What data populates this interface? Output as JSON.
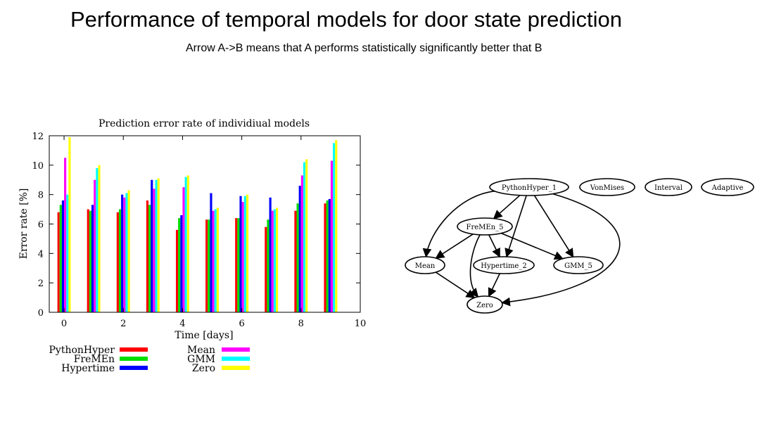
{
  "slide": {
    "title": "Performance of temporal models for door state prediction",
    "subtitle": "Arrow A->B means that A performs statistically significantly better that B"
  },
  "chart_data": {
    "type": "bar",
    "title": "Prediction error rate of individiual models",
    "xlabel": "Time [days]",
    "ylabel": "Error rate [%]",
    "ylim": [
      0,
      12
    ],
    "xlim": [
      -0.5,
      10
    ],
    "xticks": [
      "0",
      "2",
      "4",
      "6",
      "8",
      "10"
    ],
    "yticks": [
      "0",
      "2",
      "4",
      "6",
      "8",
      "10",
      "12"
    ],
    "grid": false,
    "legend_position": "bottom",
    "x": [
      0,
      1,
      2,
      3,
      4,
      5,
      6,
      7,
      8,
      9
    ],
    "series": [
      {
        "name": "PythonHyper",
        "color": "#ff0000",
        "values": [
          6.8,
          7.0,
          6.8,
          7.6,
          5.6,
          6.3,
          6.4,
          5.8,
          6.9,
          7.4
        ]
      },
      {
        "name": "FreMEn",
        "color": "#00dd00",
        "values": [
          7.3,
          6.9,
          7.0,
          7.3,
          6.4,
          6.3,
          6.4,
          6.3,
          7.4,
          7.6
        ]
      },
      {
        "name": "Hypertime",
        "color": "#0000ff",
        "values": [
          7.6,
          7.3,
          8.0,
          9.0,
          6.6,
          8.1,
          7.9,
          7.8,
          8.6,
          7.7
        ]
      },
      {
        "name": "Mean",
        "color": "#ff00ff",
        "values": [
          10.5,
          9.0,
          7.8,
          8.4,
          8.5,
          6.9,
          7.5,
          6.9,
          9.3,
          10.3
        ]
      },
      {
        "name": "GMM",
        "color": "#00ffff",
        "values": [
          8.0,
          9.8,
          8.1,
          9.0,
          9.2,
          7.0,
          7.9,
          7.0,
          10.2,
          11.5
        ]
      },
      {
        "name": "Zero",
        "color": "#ffff00",
        "values": [
          11.9,
          10.0,
          8.3,
          9.1,
          9.3,
          7.1,
          8.0,
          7.1,
          10.4,
          11.7
        ]
      }
    ]
  },
  "graph": {
    "nodes": [
      {
        "id": "PythonHyper_1",
        "label": "PythonHyper_1"
      },
      {
        "id": "VonMises",
        "label": "VonMises"
      },
      {
        "id": "Interval",
        "label": "Interval"
      },
      {
        "id": "Adaptive",
        "label": "Adaptive"
      },
      {
        "id": "FreMEn_5",
        "label": "FreMEn_5"
      },
      {
        "id": "Mean",
        "label": "Mean"
      },
      {
        "id": "Hypertime_2",
        "label": "Hypertime_2"
      },
      {
        "id": "GMM_5",
        "label": "GMM_5"
      },
      {
        "id": "Zero",
        "label": "Zero"
      }
    ],
    "edges": [
      [
        "PythonHyper_1",
        "FreMEn_5"
      ],
      [
        "PythonHyper_1",
        "Mean"
      ],
      [
        "PythonHyper_1",
        "Hypertime_2"
      ],
      [
        "PythonHyper_1",
        "GMM_5"
      ],
      [
        "PythonHyper_1",
        "Zero"
      ],
      [
        "FreMEn_5",
        "Mean"
      ],
      [
        "FreMEn_5",
        "Hypertime_2"
      ],
      [
        "FreMEn_5",
        "GMM_5"
      ],
      [
        "FreMEn_5",
        "Zero"
      ],
      [
        "Mean",
        "Zero"
      ],
      [
        "Hypertime_2",
        "Zero"
      ]
    ]
  }
}
